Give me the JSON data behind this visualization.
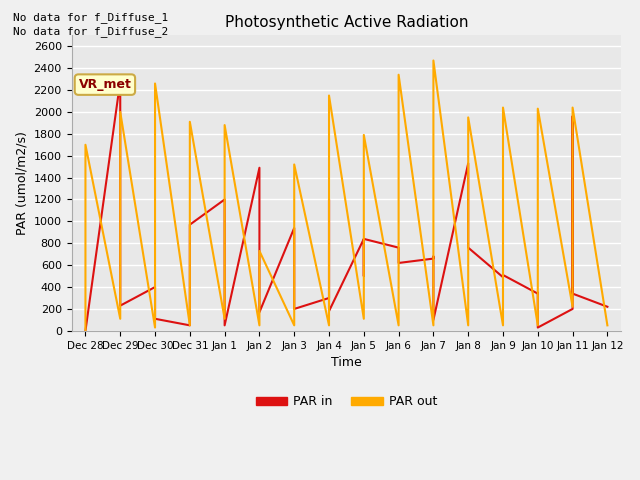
{
  "title": "Photosynthetic Active Radiation",
  "xlabel": "Time",
  "ylabel": "PAR (umol/m2/s)",
  "annotations": [
    "No data for f_Diffuse_1",
    "No data for f_Diffuse_2"
  ],
  "box_label": "VR_met",
  "legend_labels": [
    "PAR in",
    "PAR out"
  ],
  "fig_facecolor": "#f0f0f0",
  "plot_bg_color": "#e8e8e8",
  "color_par_in": "#dd1111",
  "color_par_out": "#ffaa00",
  "ylim": [
    0,
    2700
  ],
  "yticks": [
    0,
    200,
    400,
    600,
    800,
    1000,
    1200,
    1400,
    1600,
    1800,
    2000,
    2200,
    2400,
    2600
  ],
  "x_labels": [
    "Dec 28",
    "Dec 29",
    "Dec 30",
    "Dec 31",
    "Jan 1",
    "Jan 2",
    "Jan 3",
    "Jan 4",
    "Jan 5",
    "Jan 6",
    "Jan 7",
    "Jan 8",
    "Jan 9",
    "Jan 10",
    "Jan 11",
    "Jan 12"
  ],
  "par_in_x": [
    0,
    1,
    1,
    2,
    2,
    3,
    3,
    3,
    4,
    4,
    5,
    5,
    6,
    6,
    7,
    7,
    7,
    8,
    8,
    8,
    9,
    9,
    9,
    10,
    10,
    10,
    11,
    11,
    12,
    12,
    13,
    13,
    13,
    14,
    14,
    14,
    15
  ],
  "par_in_y": [
    0,
    2280,
    230,
    400,
    110,
    50,
    800,
    970,
    1200,
    50,
    1490,
    170,
    940,
    200,
    300,
    1200,
    180,
    840,
    500,
    840,
    760,
    620,
    620,
    660,
    680,
    100,
    1530,
    760,
    490,
    510,
    340,
    350,
    30,
    200,
    1960,
    340,
    220
  ],
  "par_out_x": [
    0,
    0,
    1,
    1,
    2,
    2,
    3,
    3,
    4,
    4,
    5,
    5,
    6,
    6,
    7,
    7,
    8,
    8,
    9,
    9,
    10,
    10,
    11,
    11,
    12,
    12,
    13,
    13,
    14,
    14,
    15
  ],
  "par_out_y": [
    0,
    1700,
    110,
    2000,
    30,
    2260,
    50,
    1910,
    110,
    1880,
    50,
    730,
    50,
    1520,
    50,
    2150,
    110,
    1790,
    50,
    2340,
    50,
    2470,
    50,
    1950,
    50,
    2040,
    50,
    2030,
    220,
    2040,
    50
  ]
}
